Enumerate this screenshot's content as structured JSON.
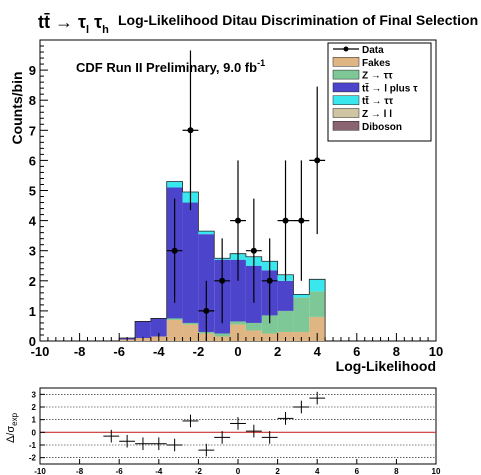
{
  "header": {
    "process_main": "tt̄ → τ",
    "process_sub1": "l",
    "process_mid": " τ",
    "process_sub2": "h",
    "title": "Log-Likelihood Ditau Discrimination of Final Selection"
  },
  "annotation": {
    "text": "CDF Run II Preliminary, 9.0 fb",
    "sup": "-1"
  },
  "colors": {
    "fakes": "#dfb683",
    "ztautau": "#7ec897",
    "ttbar_l_tau": "#4d44cc",
    "ttbar_tautau": "#39e8ee",
    "zll": "#cfc5a2",
    "diboson": "#8a6470",
    "ratio_line": "#cc3333"
  },
  "chart_data": [
    {
      "type": "bar",
      "subtype": "stacked-histogram",
      "ylabel": "Counts/bin",
      "xlabel": "Log-Likelihood",
      "xlim": [
        -10,
        10
      ],
      "ylim": [
        0,
        10
      ],
      "bin_edges": [
        -6.0,
        -5.2,
        -4.4,
        -3.6,
        -2.8,
        -2.0,
        -1.2,
        -0.4,
        0.4,
        1.2,
        2.0,
        2.8,
        3.6,
        4.4
      ],
      "series": [
        {
          "name": "Fakes",
          "color_key": "fakes",
          "values": [
            0.05,
            0.1,
            0.15,
            0.7,
            0.55,
            0.25,
            0.15,
            0.55,
            0.35,
            0.25,
            0.3,
            0.3,
            0.8
          ]
        },
        {
          "name": "Z → ττ",
          "color_key": "ztautau",
          "values": [
            0.0,
            0.0,
            0.0,
            0.05,
            0.05,
            0.05,
            0.1,
            0.1,
            0.25,
            0.6,
            0.7,
            1.15,
            0.85
          ]
        },
        {
          "name": "tt̄ → l plus τ",
          "color_key": "ttbar_l_tau",
          "values": [
            0.05,
            0.55,
            0.6,
            4.35,
            4.0,
            3.25,
            2.45,
            2.05,
            1.9,
            1.5,
            1.0,
            0.0,
            0.0
          ]
        },
        {
          "name": "tt̄ → ττ",
          "color_key": "ttbar_tautau",
          "values": [
            0.0,
            0.0,
            0.0,
            0.2,
            0.35,
            0.1,
            0.05,
            0.2,
            0.3,
            0.3,
            0.2,
            0.1,
            0.4
          ]
        },
        {
          "name": "Z → l l",
          "color_key": "zll",
          "values": [
            0.0,
            0.0,
            0.0,
            0.0,
            0.0,
            0.0,
            0.0,
            0.0,
            0.0,
            0.0,
            0.0,
            0.0,
            0.0
          ]
        },
        {
          "name": "Diboson",
          "color_key": "diboson",
          "values": [
            0.0,
            0.0,
            0.0,
            0.0,
            0.0,
            0.0,
            0.0,
            0.0,
            0.0,
            0.0,
            0.0,
            0.0,
            0.0
          ]
        }
      ],
      "data_points": {
        "name": "Data",
        "x": [
          -3.2,
          -2.4,
          -1.6,
          -0.8,
          0.0,
          0.8,
          1.6,
          2.4,
          3.2,
          4.0
        ],
        "y": [
          3,
          7,
          1,
          2,
          4,
          3,
          2,
          4,
          4,
          6
        ],
        "yerr": [
          1.73,
          2.65,
          1.0,
          1.41,
          2.0,
          1.73,
          1.41,
          2.0,
          2.0,
          2.45
        ]
      },
      "xticks": [
        -10,
        -8,
        -6,
        -4,
        -2,
        0,
        2,
        4,
        6,
        8,
        10
      ],
      "yticks": [
        0,
        1,
        2,
        3,
        4,
        5,
        6,
        7,
        8,
        9
      ],
      "legend": {
        "placement": "top-right",
        "entries": [
          "Data",
          "Fakes",
          "Z → ττ",
          "tt̄ → l plus τ",
          "tt̄ → ττ",
          "Z → l l",
          "Diboson"
        ]
      }
    },
    {
      "type": "scatter",
      "subtype": "ratio-panel",
      "ylabel": "Δ/σ",
      "ylabel_sub": "exp",
      "xlim": [
        -10,
        10
      ],
      "ylim": [
        -2.5,
        3.5
      ],
      "xticks": [
        -10,
        -8,
        -6,
        -4,
        -2,
        0,
        2,
        4,
        6,
        8,
        10
      ],
      "yticks": [
        -2,
        -1,
        0,
        1,
        2,
        3
      ],
      "grid": "horizontal dotted at integer values",
      "x": [
        -6.4,
        -5.6,
        -4.8,
        -4.0,
        -3.2,
        -2.4,
        -1.6,
        -0.8,
        0.0,
        0.8,
        1.6,
        2.4,
        3.2,
        4.0
      ],
      "y": [
        -0.3,
        -0.7,
        -0.9,
        -0.9,
        -1.0,
        0.9,
        -1.4,
        -0.4,
        0.7,
        0.1,
        -0.4,
        1.1,
        2.0,
        2.7
      ],
      "yerr": [
        0.5,
        0.5,
        0.5,
        0.5,
        0.5,
        0.5,
        0.5,
        0.5,
        0.5,
        0.5,
        0.5,
        0.5,
        0.5,
        0.5
      ],
      "xerr": 0.4
    }
  ]
}
